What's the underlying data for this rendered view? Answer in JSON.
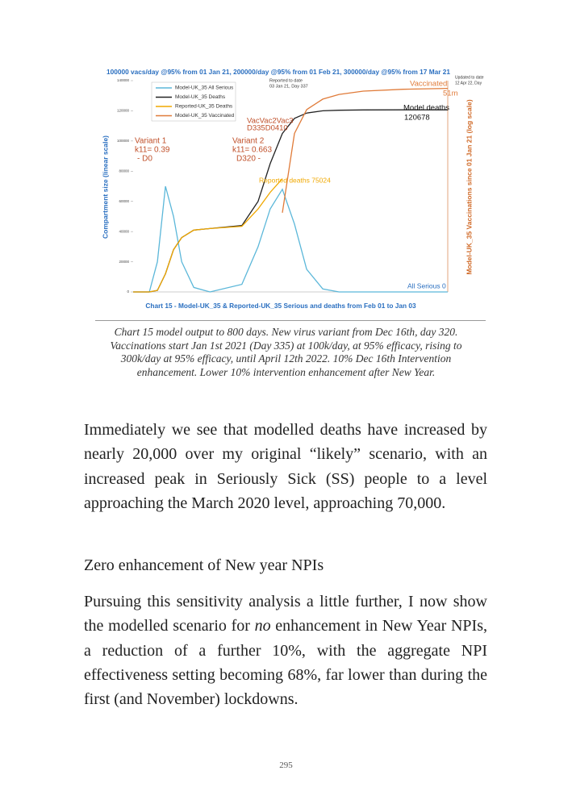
{
  "chart_data": {
    "type": "line",
    "title": "100000 vacs/day @95% from 01 Jan 21, 200000/day @95% from 01 Feb 21, 300000/day @95% from 17 Mar 21",
    "subtitle": "Chart 15 - Model-UK_35 & Reported-UK_35 Serious and deaths from Feb 01 to Jan 03",
    "y_label": "Compartment size (linear scale)",
    "y2_label": "Model-UK_35 Vaccinations since 01 Jan 21 (log scale)",
    "x": [
      0,
      36,
      54,
      72,
      90,
      108,
      135,
      171,
      242,
      278,
      305,
      332,
      359,
      386,
      422,
      458,
      512,
      601,
      700
    ],
    "xlim": [
      0,
      700
    ],
    "ylim": [
      0,
      140000
    ],
    "yticks": [
      0,
      20000,
      40000,
      60000,
      80000,
      100000,
      120000,
      140000
    ],
    "y2lim": [
      1,
      100000000
    ],
    "y2_log": true,
    "grid": false,
    "legend": "top-left",
    "series": [
      {
        "name": "Model-UK_35 All Serious",
        "color": "#5bb7d9",
        "values": [
          0,
          0,
          20000,
          70000,
          50000,
          20000,
          3000,
          0,
          5000,
          30000,
          55000,
          68000,
          45000,
          15000,
          2000,
          0,
          0,
          0,
          0
        ]
      },
      {
        "name": "Model-UK_35 Deaths",
        "color": "#222222",
        "values": [
          0,
          0,
          1000,
          12000,
          28000,
          36000,
          41000,
          42000,
          44000,
          60000,
          85000,
          105000,
          115000,
          118500,
          120000,
          120400,
          120600,
          120678,
          120678
        ]
      },
      {
        "name": "Reported-UK_35 Deaths",
        "color": "#f0a800",
        "values": [
          0,
          0,
          1000,
          12000,
          28000,
          36000,
          41000,
          42000,
          43500,
          55000,
          66000,
          75024,
          null,
          null,
          null,
          null,
          null,
          null,
          null
        ]
      },
      {
        "name": "Model-UK_35 Vaccinated",
        "color": "#e07b39",
        "axis": "y2",
        "values": [
          null,
          null,
          null,
          null,
          null,
          null,
          null,
          null,
          null,
          null,
          null,
          1000,
          1000000,
          8000000,
          20000000,
          30000000,
          40000000,
          47000000,
          51000000
        ]
      }
    ],
    "annotations": [
      "Variant 1",
      "k11= 0.39",
      "- D0",
      "Variant 2",
      "k11= 0.663",
      "D320 -",
      "VacVac2Vac3",
      "D335D0410",
      "Reported deaths 75024",
      "Model deaths",
      "120678",
      "Vaccinated",
      "51m",
      "All Serious 0",
      "Reported to date",
      "03 Jan 21, Day 337",
      "Updated to date",
      "12 Apr 22, Day"
    ]
  },
  "caption": [
    "Chart 15 model output to 800 days. New virus variant from Dec 16th, day 320.",
    "Vaccinations start Jan 1st 2021 (Day 335) at 100k/day, at 95% efficacy, rising to",
    "300k/day at 95% efficacy, until April 12th 2022. 10% Dec 16th Intervention",
    "enhancement. Lower 10% intervention enhancement after New Year."
  ],
  "paragraph_1": "Immediately we see that modelled deaths have increased by nearly 20,000 over my original “likely” scenario, with an increased peak in Seriously Sick (SS) people to a level approaching the March 2020 level, approaching 70,000.",
  "heading": "Zero enhancement of New year NPIs",
  "paragraph_2": {
    "before": "Pursuing this sensitivity analysis a little further, I now show the modelled scenario for ",
    "emphasis": "no",
    "after": " enhancement in New Year NPIs, a reduction of a further 10%, with the aggregate NPI effectiveness setting becoming 68%, far lower than during the first (and November) lockdowns."
  },
  "page_number": "295"
}
